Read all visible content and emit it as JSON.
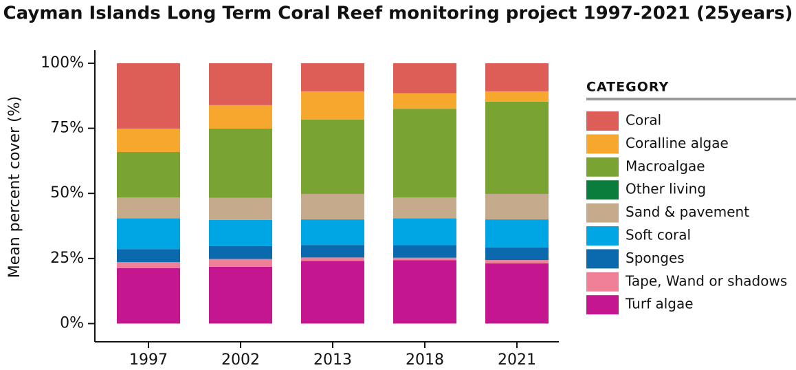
{
  "chart_data": {
    "type": "stacked-bar",
    "title": "Cayman Islands Long Term Coral Reef monitoring project 1997-2021 (25years)",
    "y_label": "Mean percent cover (%)",
    "legend_title": "CATEGORY",
    "categories": [
      "1997",
      "2002",
      "2013",
      "2018",
      "2021"
    ],
    "series": [
      {
        "name": "Turf algae",
        "color": "#c4178f",
        "values": [
          21.3,
          21.8,
          24.1,
          24.3,
          23.1
        ]
      },
      {
        "name": "Tape, Wand or shadows",
        "color": "#f07f98",
        "values": [
          2.3,
          3.0,
          1.3,
          1.0,
          1.3
        ]
      },
      {
        "name": "Sponges",
        "color": "#0b6aae",
        "values": [
          5.0,
          5.0,
          4.8,
          4.8,
          4.8
        ]
      },
      {
        "name": "Soft coral",
        "color": "#00a5e3",
        "values": [
          11.8,
          10.0,
          9.8,
          10.3,
          10.8
        ]
      },
      {
        "name": "Sand & pavement",
        "color": "#c5ab8c",
        "values": [
          8.0,
          8.5,
          9.8,
          8.0,
          9.8
        ]
      },
      {
        "name": "Other living",
        "color": "#0a7c3c",
        "values": [
          0,
          0,
          0,
          0,
          0
        ]
      },
      {
        "name": "Macroalgae",
        "color": "#7aa432",
        "values": [
          17.5,
          26.6,
          28.6,
          34.1,
          35.4
        ]
      },
      {
        "name": "Coralline algae",
        "color": "#f6a82e",
        "values": [
          9.0,
          9.0,
          10.8,
          6.0,
          4.0
        ]
      },
      {
        "name": "Coral",
        "color": "#dc5e57",
        "values": [
          25.1,
          16.1,
          10.8,
          11.5,
          10.8
        ]
      }
    ],
    "ylim": [
      -7,
      105
    ],
    "yticks": [
      {
        "value": 0,
        "label": "0%"
      },
      {
        "value": 25,
        "label": "25%"
      },
      {
        "value": 50,
        "label": "50%"
      },
      {
        "value": 75,
        "label": "75%"
      },
      {
        "value": 100,
        "label": "100%"
      }
    ],
    "grid": false,
    "legend": "right"
  }
}
